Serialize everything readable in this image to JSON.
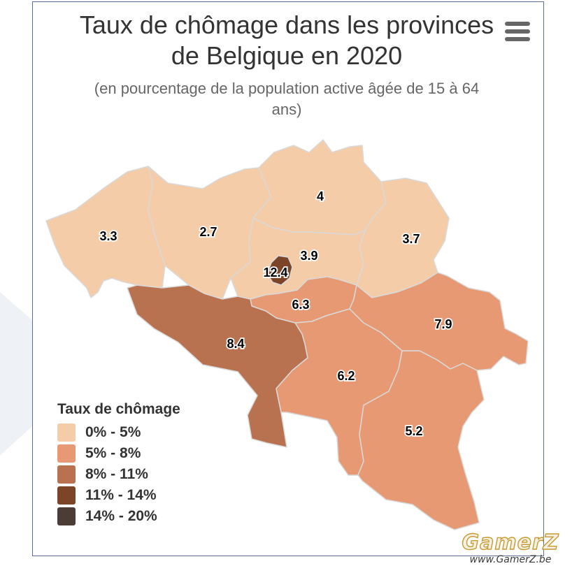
{
  "chart": {
    "title_line1": "Taux de chômage dans les provinces",
    "title_line2": "de Belgique en 2020",
    "subtitle_line1": "(en pourcentage de la population active âgée de 15 à 64",
    "subtitle_line2": "ans)",
    "menu_icon": "hamburger-menu-icon"
  },
  "legend": {
    "title": "Taux de chômage",
    "items": [
      {
        "label": "0% - 5%",
        "color": "#f5cca8"
      },
      {
        "label": "5% - 8%",
        "color": "#e69972"
      },
      {
        "label": "8% - 11%",
        "color": "#b87250"
      },
      {
        "label": "11% - 14%",
        "color": "#7c4528"
      },
      {
        "label": "14% - 20%",
        "color": "#4b3d35"
      }
    ]
  },
  "chart_data": {
    "type": "choropleth map",
    "unit": "%",
    "regions": [
      {
        "id": "west-flanders",
        "value": 3.3
      },
      {
        "id": "east-flanders",
        "value": 2.7
      },
      {
        "id": "antwerp",
        "value": 4
      },
      {
        "id": "limburg",
        "value": 3.7
      },
      {
        "id": "flemish-brabant",
        "value": 3.9
      },
      {
        "id": "brussels",
        "value": 12.4
      },
      {
        "id": "walloon-brabant",
        "value": 6.3
      },
      {
        "id": "hainaut",
        "value": 8.4
      },
      {
        "id": "liege",
        "value": 7.9
      },
      {
        "id": "namur",
        "value": 6.2
      },
      {
        "id": "luxembourg",
        "value": 5.2
      }
    ]
  },
  "watermark": {
    "logo": "GamerZ",
    "url": "www.GamerZ.be"
  }
}
